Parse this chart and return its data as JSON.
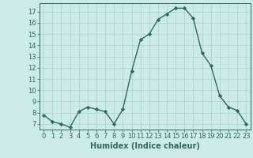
{
  "x": [
    0,
    1,
    2,
    3,
    4,
    5,
    6,
    7,
    8,
    9,
    10,
    11,
    12,
    13,
    14,
    15,
    16,
    17,
    18,
    19,
    20,
    21,
    22,
    23
  ],
  "y": [
    7.8,
    7.2,
    7.0,
    6.7,
    8.1,
    8.5,
    8.3,
    8.1,
    7.0,
    8.3,
    11.7,
    14.5,
    15.0,
    16.3,
    16.8,
    17.3,
    17.3,
    16.4,
    13.3,
    12.2,
    9.5,
    8.5,
    8.2,
    7.0
  ],
  "line_color": "#2d6b5e",
  "marker": "D",
  "marker_size": 2.2,
  "bg_color": "#cceae8",
  "grid_color": "#aad4d0",
  "xlabel": "Humidex (Indice chaleur)",
  "xlim": [
    -0.5,
    23.5
  ],
  "ylim": [
    6.5,
    17.75
  ],
  "yticks": [
    7,
    8,
    9,
    10,
    11,
    12,
    13,
    14,
    15,
    16,
    17
  ],
  "xticks": [
    0,
    1,
    2,
    3,
    4,
    5,
    6,
    7,
    8,
    9,
    10,
    11,
    12,
    13,
    14,
    15,
    16,
    17,
    18,
    19,
    20,
    21,
    22,
    23
  ],
  "tick_fontsize": 6.0,
  "xlabel_fontsize": 7.0,
  "line_width": 1.0
}
